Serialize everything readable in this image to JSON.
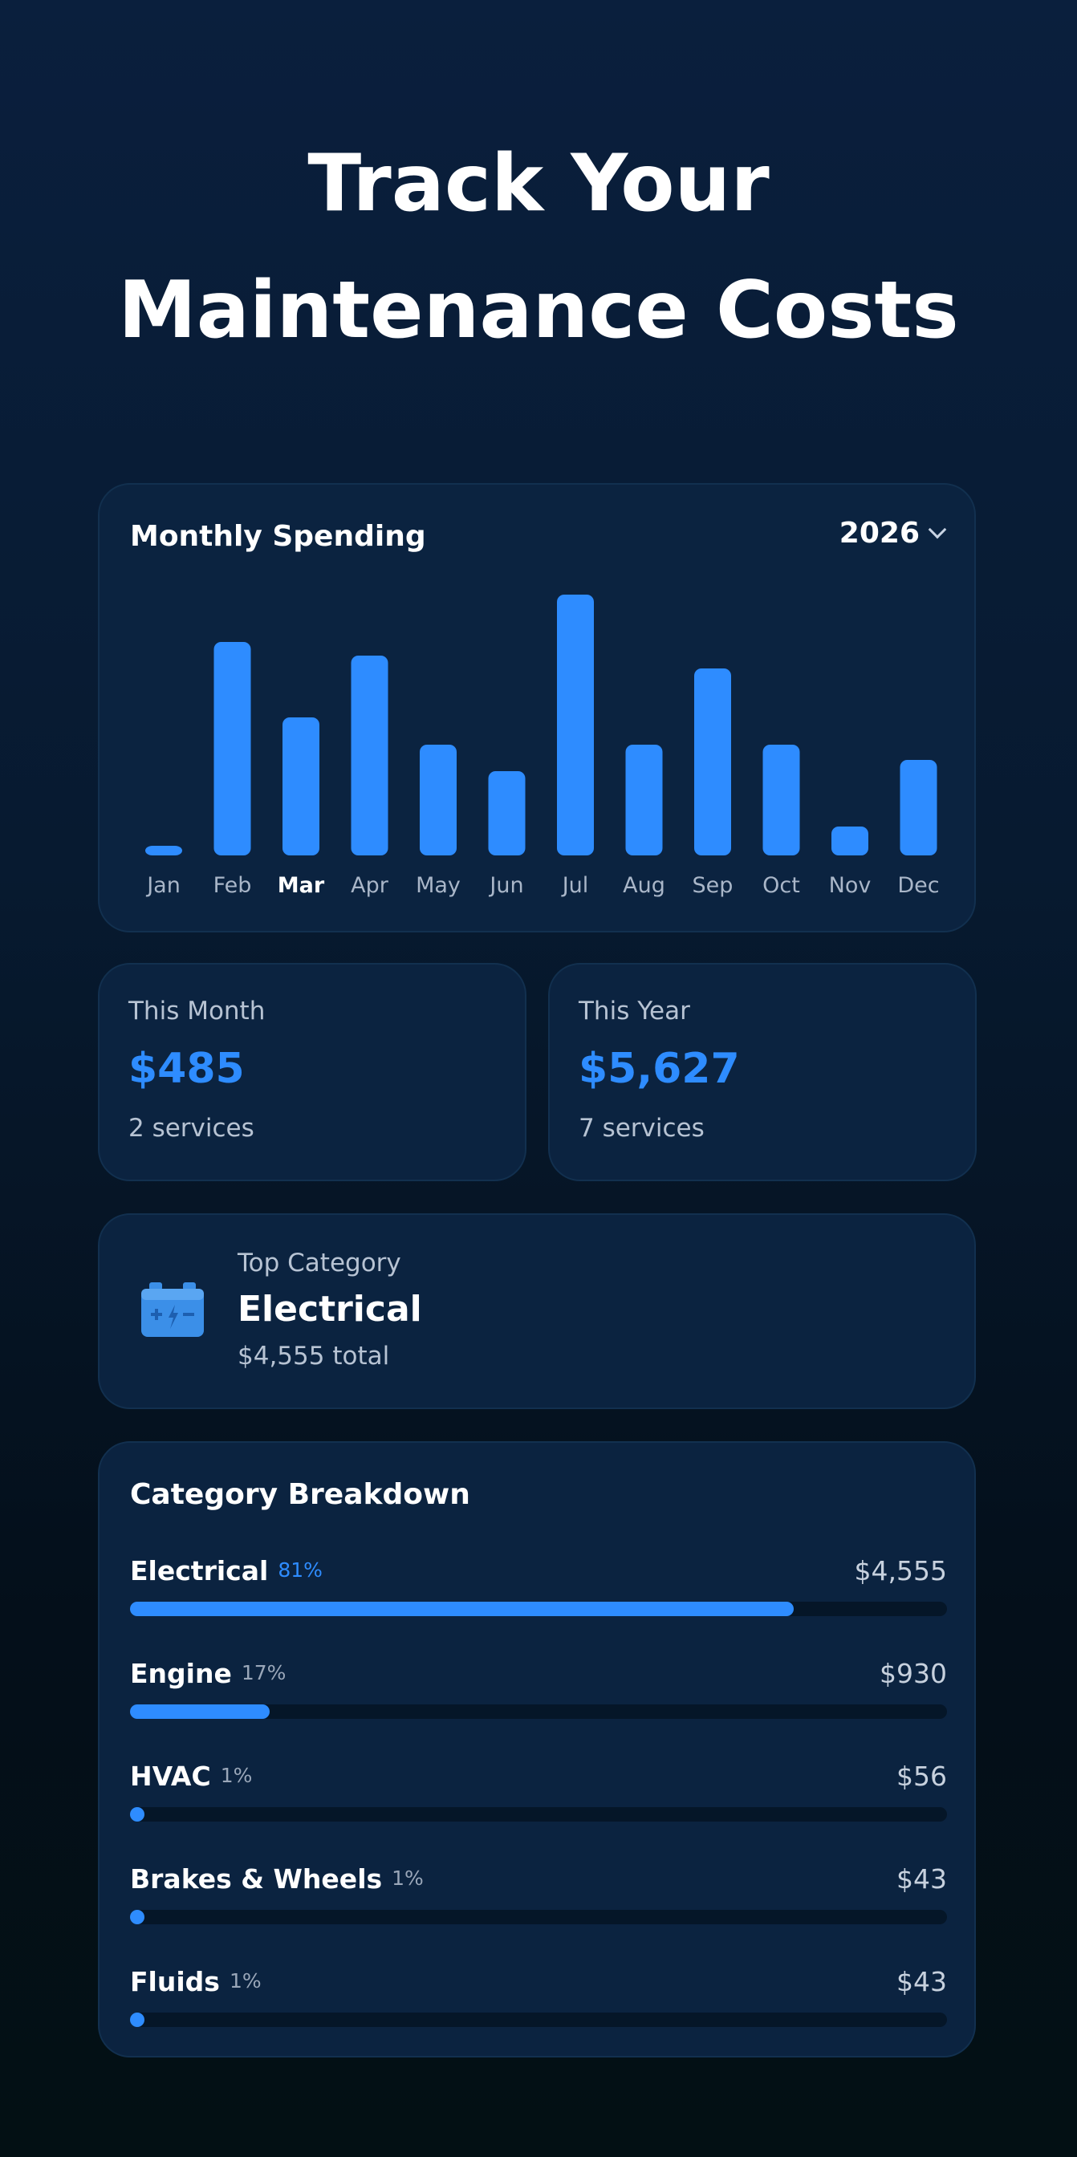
{
  "headline": {
    "line1": "Track Your",
    "line2": "Maintenance Costs"
  },
  "monthly": {
    "title": "Monthly Spending",
    "year": "2026",
    "selected_month": "Mar"
  },
  "chart_data": {
    "type": "bar",
    "title": "Monthly Spending",
    "categories": [
      "Jan",
      "Feb",
      "Mar",
      "Apr",
      "May",
      "Jun",
      "Jul",
      "Aug",
      "Sep",
      "Oct",
      "Nov",
      "Dec"
    ],
    "values": [
      12,
      266,
      172,
      249,
      138,
      105,
      325,
      138,
      233,
      138,
      36,
      119
    ],
    "ylim": [
      0,
      325
    ],
    "grid": false,
    "color": "#2e8cff"
  },
  "stats": {
    "month": {
      "label": "This Month",
      "value": "$485",
      "sub": "2 services"
    },
    "year": {
      "label": "This Year",
      "value": "$5,627",
      "sub": "7 services"
    }
  },
  "top_category": {
    "label": "Top Category",
    "name": "Electrical",
    "total": "$4,555 total",
    "icon": "battery-icon"
  },
  "breakdown": {
    "title": "Category Breakdown",
    "items": [
      {
        "name": "Electrical",
        "pct": "81%",
        "amount": "$4,555",
        "fraction": 0.81
      },
      {
        "name": "Engine",
        "pct": "17%",
        "amount": "$930",
        "fraction": 0.17
      },
      {
        "name": "HVAC",
        "pct": "1%",
        "amount": "$56",
        "fraction": 0.01
      },
      {
        "name": "Brakes & Wheels",
        "pct": "1%",
        "amount": "$43",
        "fraction": 0.01
      },
      {
        "name": "Fluids",
        "pct": "1%",
        "amount": "$43",
        "fraction": 0.01
      }
    ]
  },
  "colors": {
    "accent": "#2e8cff",
    "card": "#0b2340",
    "track": "#051628"
  }
}
